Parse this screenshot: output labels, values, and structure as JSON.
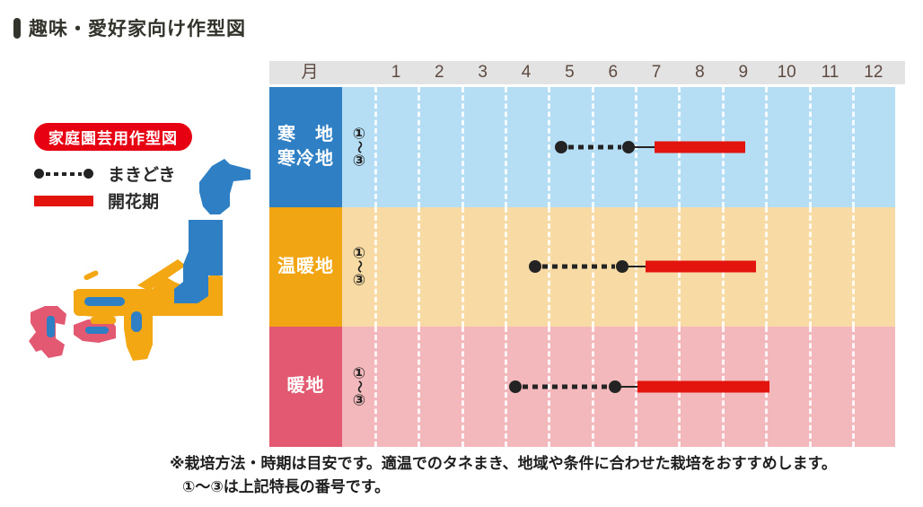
{
  "title": {
    "text": "趣味・愛好家向け作型図"
  },
  "legend": {
    "badge": "家庭園芸用作型図",
    "items": [
      {
        "icon": "sowing-dotted-line-icon",
        "label": "まきどき"
      },
      {
        "icon": "flowering-red-bar-icon",
        "label": "開花期"
      }
    ]
  },
  "map": {
    "description": "stylized-japan-climate-zone-map",
    "zone_colors": {
      "cold": "#2e7fc4",
      "temperate": "#f2a713",
      "warm": "#e25971"
    }
  },
  "chart_data": {
    "type": "gantt-timeline",
    "title": "家庭園芸用作型図",
    "month_header": "月",
    "months": [
      "1",
      "2",
      "3",
      "4",
      "5",
      "6",
      "7",
      "8",
      "9",
      "10",
      "11",
      "12"
    ],
    "axis": {
      "x_min": 1,
      "x_max": 13,
      "unit": "month"
    },
    "marker": {
      "top": "①",
      "mid": "〜",
      "bottom": "③"
    },
    "series_legend": {
      "sow": "まきどき",
      "flower": "開花期"
    },
    "regions": [
      {
        "label": "寒地寒冷地",
        "label_lines": [
          "寒　地",
          "寒冷地"
        ],
        "label_color": "#2e7fc4",
        "row_color": "#b5ddf4",
        "sow": [
          5.3,
          6.85
        ],
        "flower": [
          7.45,
          9.55
        ]
      },
      {
        "label": "温暖地",
        "label_lines": [
          "温暖地"
        ],
        "label_color": "#f2a513",
        "row_color": "#f8dba4",
        "sow": [
          4.7,
          6.7
        ],
        "flower": [
          7.25,
          9.8
        ]
      },
      {
        "label": "暖地",
        "label_lines": [
          "暖地"
        ],
        "label_color": "#e25971",
        "row_color": "#f2b8bb",
        "sow": [
          4.25,
          6.55
        ],
        "flower": [
          7.05,
          10.1
        ]
      }
    ]
  },
  "footnote": {
    "line1": "※栽培方法・時期は目安です。適温でのタネまき、地域や条件に合わせた栽培をおすすめします。",
    "line2": "①〜③は上記特長の番号です。"
  },
  "colors": {
    "bar_red": "#e3140e",
    "badge_red": "#e60012",
    "dot_black": "#232323",
    "header_bg": "#e3e3e3",
    "header_text": "#5f4a42"
  }
}
